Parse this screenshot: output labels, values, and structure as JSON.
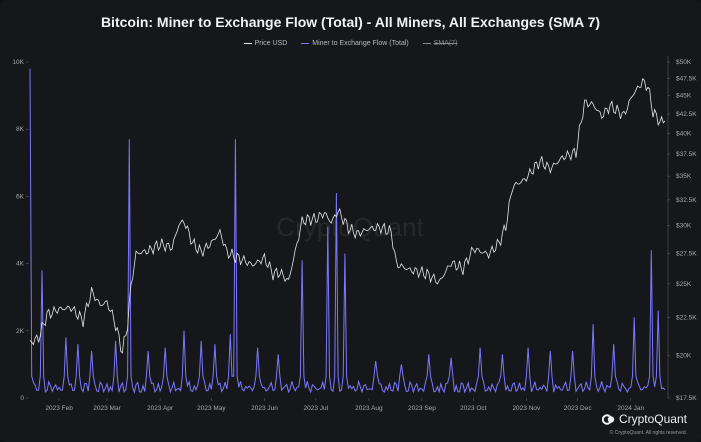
{
  "chart_data": {
    "type": "line",
    "title": "Bitcoin: Miner to Exchange Flow (Total) - All Miners, All Exchanges (SMA 7)",
    "legend": {
      "placement": "top-center",
      "entries": [
        {
          "name": "Price USD",
          "color": "#e6e6e6",
          "hidden": false
        },
        {
          "name": "Miner to Exchange Flow (Total)",
          "color": "#7b78ff",
          "hidden": false
        },
        {
          "name": "SMA(7)",
          "color": "#9a9a9a",
          "hidden": true
        }
      ]
    },
    "x_axis": {
      "type": "date",
      "range": [
        "2023-01-15",
        "2024-01-21"
      ],
      "ticks": [
        {
          "date": "2023-02-01",
          "label": "2023 Feb"
        },
        {
          "date": "2023-03-01",
          "label": "2023 Mar"
        },
        {
          "date": "2023-04-01",
          "label": "2023 Apr"
        },
        {
          "date": "2023-05-01",
          "label": "2023 May"
        },
        {
          "date": "2023-06-01",
          "label": "2023 Jun"
        },
        {
          "date": "2023-07-01",
          "label": "2023 Jul"
        },
        {
          "date": "2023-08-01",
          "label": "2023 Aug"
        },
        {
          "date": "2023-09-01",
          "label": "2023 Sep"
        },
        {
          "date": "2023-10-01",
          "label": "2023 Oct"
        },
        {
          "date": "2023-11-01",
          "label": "2023 Nov"
        },
        {
          "date": "2023-12-01",
          "label": "2023 Dec"
        },
        {
          "date": "2024-01-01",
          "label": "2024 Jan"
        }
      ]
    },
    "y_left": {
      "range": [
        0,
        10000
      ],
      "ticks": [
        {
          "value": 0,
          "label": "0"
        },
        {
          "value": 2000,
          "label": "2K"
        },
        {
          "value": 4000,
          "label": "4K"
        },
        {
          "value": 6000,
          "label": "6K"
        },
        {
          "value": 8000,
          "label": "8K"
        },
        {
          "value": 10000,
          "label": "10K"
        }
      ]
    },
    "y_right": {
      "scale": "log",
      "range": [
        17500,
        50000
      ],
      "ticks": [
        {
          "value": 17500,
          "label": "$17.5K"
        },
        {
          "value": 20000,
          "label": "$20K"
        },
        {
          "value": 22500,
          "label": "$22.5K"
        },
        {
          "value": 25000,
          "label": "$25K"
        },
        {
          "value": 27500,
          "label": "$27.5K"
        },
        {
          "value": 30000,
          "label": "$30K"
        },
        {
          "value": 32500,
          "label": "$32.5K"
        },
        {
          "value": 35000,
          "label": "$35K"
        },
        {
          "value": 37500,
          "label": "$37.5K"
        },
        {
          "value": 40000,
          "label": "$40K"
        },
        {
          "value": 42500,
          "label": "$42.5K"
        },
        {
          "value": 45000,
          "label": "$45K"
        },
        {
          "value": 47500,
          "label": "$47.5K"
        },
        {
          "value": 50000,
          "label": "$50K"
        }
      ]
    },
    "grid": false,
    "watermark": "CryptoQuant",
    "series": [
      {
        "name": "Price USD",
        "axis": "right",
        "color": "#e6e6e6",
        "points": [
          [
            "2023-01-15",
            20800
          ],
          [
            "2023-01-20",
            21100
          ],
          [
            "2023-01-25",
            22700
          ],
          [
            "2023-02-01",
            23100
          ],
          [
            "2023-02-08",
            23200
          ],
          [
            "2023-02-15",
            22300
          ],
          [
            "2023-02-20",
            24400
          ],
          [
            "2023-02-25",
            23400
          ],
          [
            "2023-03-01",
            23600
          ],
          [
            "2023-03-05",
            22400
          ],
          [
            "2023-03-10",
            20200
          ],
          [
            "2023-03-13",
            22000
          ],
          [
            "2023-03-15",
            24800
          ],
          [
            "2023-03-18",
            27500
          ],
          [
            "2023-03-25",
            27700
          ],
          [
            "2023-04-01",
            28300
          ],
          [
            "2023-04-08",
            28000
          ],
          [
            "2023-04-12",
            30100
          ],
          [
            "2023-04-15",
            30400
          ],
          [
            "2023-04-20",
            28400
          ],
          [
            "2023-04-25",
            27600
          ],
          [
            "2023-05-01",
            28400
          ],
          [
            "2023-05-06",
            29400
          ],
          [
            "2023-05-10",
            27600
          ],
          [
            "2023-05-15",
            27200
          ],
          [
            "2023-05-20",
            26900
          ],
          [
            "2023-05-25",
            26500
          ],
          [
            "2023-06-01",
            27100
          ],
          [
            "2023-06-06",
            25800
          ],
          [
            "2023-06-10",
            25900
          ],
          [
            "2023-06-15",
            25200
          ],
          [
            "2023-06-20",
            28300
          ],
          [
            "2023-06-23",
            30400
          ],
          [
            "2023-06-27",
            30600
          ],
          [
            "2023-07-01",
            30600
          ],
          [
            "2023-07-06",
            31200
          ],
          [
            "2023-07-10",
            30300
          ],
          [
            "2023-07-14",
            31400
          ],
          [
            "2023-07-20",
            29800
          ],
          [
            "2023-07-25",
            29200
          ],
          [
            "2023-08-01",
            29700
          ],
          [
            "2023-08-08",
            29800
          ],
          [
            "2023-08-14",
            29400
          ],
          [
            "2023-08-17",
            26600
          ],
          [
            "2023-08-25",
            26100
          ],
          [
            "2023-09-01",
            25900
          ],
          [
            "2023-09-05",
            25700
          ],
          [
            "2023-09-11",
            25100
          ],
          [
            "2023-09-18",
            26700
          ],
          [
            "2023-09-25",
            26200
          ],
          [
            "2023-10-01",
            27900
          ],
          [
            "2023-10-10",
            27400
          ],
          [
            "2023-10-16",
            28400
          ],
          [
            "2023-10-20",
            29900
          ],
          [
            "2023-10-24",
            33900
          ],
          [
            "2023-10-31",
            34600
          ],
          [
            "2023-11-09",
            36700
          ],
          [
            "2023-11-15",
            35800
          ],
          [
            "2023-11-22",
            37100
          ],
          [
            "2023-11-30",
            37700
          ],
          [
            "2023-12-05",
            44000
          ],
          [
            "2023-12-10",
            43800
          ],
          [
            "2023-12-15",
            42200
          ],
          [
            "2023-12-20",
            43600
          ],
          [
            "2023-12-28",
            42300
          ],
          [
            "2024-01-02",
            45100
          ],
          [
            "2024-01-08",
            47000
          ],
          [
            "2024-01-11",
            46300
          ],
          [
            "2024-01-14",
            42800
          ],
          [
            "2024-01-18",
            41500
          ],
          [
            "2024-01-21",
            41600
          ]
        ]
      },
      {
        "name": "Miner to Exchange Flow (Total)",
        "axis": "left",
        "color": "#7b78ff",
        "baseline": 500,
        "peaks": [
          [
            "2023-01-15",
            9800
          ],
          [
            "2023-01-22",
            3800
          ],
          [
            "2023-02-05",
            1800
          ],
          [
            "2023-02-12",
            1600
          ],
          [
            "2023-02-20",
            1400
          ],
          [
            "2023-03-06",
            1700
          ],
          [
            "2023-03-14",
            7700
          ],
          [
            "2023-03-25",
            1400
          ],
          [
            "2023-04-04",
            1500
          ],
          [
            "2023-04-15",
            2000
          ],
          [
            "2023-04-25",
            1700
          ],
          [
            "2023-05-03",
            1600
          ],
          [
            "2023-05-12",
            1900
          ],
          [
            "2023-05-15",
            7700
          ],
          [
            "2023-05-28",
            1500
          ],
          [
            "2023-06-09",
            1300
          ],
          [
            "2023-06-23",
            4100
          ],
          [
            "2023-07-08",
            5100
          ],
          [
            "2023-07-13",
            6100
          ],
          [
            "2023-07-18",
            4300
          ],
          [
            "2023-08-05",
            1100
          ],
          [
            "2023-08-20",
            1000
          ],
          [
            "2023-09-05",
            1300
          ],
          [
            "2023-09-18",
            1200
          ],
          [
            "2023-10-05",
            1500
          ],
          [
            "2023-10-18",
            1300
          ],
          [
            "2023-11-02",
            1500
          ],
          [
            "2023-11-15",
            1400
          ],
          [
            "2023-11-28",
            1400
          ],
          [
            "2023-12-10",
            2200
          ],
          [
            "2023-12-22",
            1600
          ],
          [
            "2024-01-03",
            2400
          ],
          [
            "2024-01-13",
            4400
          ],
          [
            "2024-01-17",
            2600
          ]
        ]
      }
    ]
  },
  "branding": {
    "name": "CryptoQuant",
    "copyright": "© CryptoQuant. All rights reserved."
  }
}
